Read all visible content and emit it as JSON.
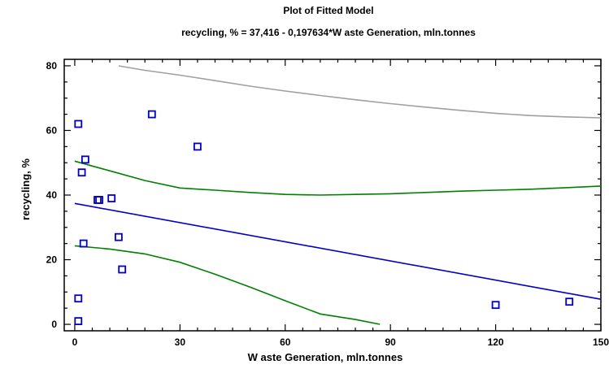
{
  "chart_data": {
    "type": "scatter",
    "title": "Plot of Fitted Model",
    "subtitle": "recycling, % = 37,416 - 0,197634*W aste Generation, mln.tonnes",
    "xlabel": "W aste Generation, mln.tonnes",
    "ylabel": "recycling, %",
    "xlim": [
      -3,
      150
    ],
    "ylim": [
      -2,
      82
    ],
    "xticks": [
      0,
      30,
      60,
      90,
      120,
      150
    ],
    "xtick_labels": [
      "0",
      "30",
      "60",
      "90",
      "120",
      "150"
    ],
    "yticks": [
      0,
      20,
      40,
      60,
      80
    ],
    "ytick_labels": [
      "0",
      "20",
      "40",
      "60",
      "80"
    ],
    "grid": false,
    "legend": "none",
    "points": {
      "color": "#0000cc",
      "marker": "open-square",
      "x": [
        1,
        1,
        1,
        2,
        2.5,
        3,
        6.5,
        7,
        10.5,
        12.5,
        13.5,
        22,
        35,
        120,
        141
      ],
      "y": [
        62,
        8,
        1,
        47,
        25,
        51,
        38.5,
        38.5,
        39,
        27,
        17,
        65,
        55,
        6,
        7
      ]
    },
    "series": [
      {
        "role": "fitted-line",
        "color": "#0000cc",
        "x": [
          0,
          150
        ],
        "y": [
          37.416,
          7.77
        ]
      },
      {
        "role": "lower-confidence-limit",
        "color": "#008000",
        "x": [
          0,
          10,
          20,
          30,
          40,
          50,
          60,
          70,
          80,
          87
        ],
        "y": [
          24.3,
          23.3,
          21.8,
          19.2,
          15.5,
          11.5,
          7.3,
          3.2,
          1.5,
          0
        ]
      },
      {
        "role": "upper-confidence-limit",
        "color": "#008000",
        "x": [
          0,
          10,
          20,
          30,
          40,
          50,
          60,
          70,
          80,
          90,
          100,
          110,
          120,
          130,
          140,
          150
        ],
        "y": [
          50.5,
          47.5,
          44.5,
          42.2,
          41.5,
          40.8,
          40.2,
          40,
          40.2,
          40.4,
          40.8,
          41.2,
          41.5,
          41.8,
          42.3,
          42.8
        ]
      },
      {
        "role": "upper-prediction-limit",
        "color": "#a0a0a0",
        "x": [
          12.5,
          20,
          30,
          40,
          50,
          60,
          70,
          80,
          90,
          100,
          110,
          120,
          130,
          140,
          150
        ],
        "y": [
          80,
          78.6,
          77.1,
          75.4,
          73.7,
          72.2,
          70.8,
          69.5,
          68.3,
          67.2,
          66.2,
          65.3,
          64.6,
          64.2,
          63.9
        ]
      }
    ]
  }
}
